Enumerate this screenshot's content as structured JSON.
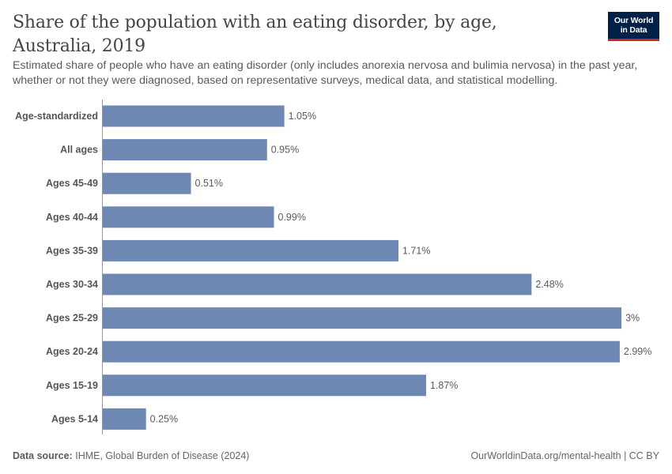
{
  "title": "Share of the population with an eating disorder, by age, Australia, 2019",
  "subtitle": "Estimated share of people who have an eating disorder (only includes anorexia nervosa and bulimia nervosa) in the past year, whether or not they were diagnosed, based on representative surveys, medical data, and statistical modelling.",
  "logo": {
    "line1": "Our World",
    "line2": "in Data",
    "bg_color": "#002147",
    "accent_color": "#ce261e"
  },
  "footer": {
    "source_label": "Data source:",
    "source_text": "IHME, Global Burden of Disease (2024)",
    "url_text": "OurWorldinData.org/mental-health | CC BY"
  },
  "chart_data": {
    "type": "bar",
    "orientation": "horizontal",
    "categories": [
      "Age-standardized",
      "All ages",
      "Ages 45-49",
      "Ages 40-44",
      "Ages 35-39",
      "Ages 30-34",
      "Ages 25-29",
      "Ages 20-24",
      "Ages 15-19",
      "Ages 5-14"
    ],
    "values": [
      1.05,
      0.95,
      0.51,
      0.99,
      1.71,
      2.48,
      3.0,
      2.99,
      1.87,
      0.25
    ],
    "value_labels": [
      "1.05%",
      "0.95%",
      "0.51%",
      "0.99%",
      "1.71%",
      "2.48%",
      "3%",
      "2.99%",
      "1.87%",
      "0.25%"
    ],
    "unit": "%",
    "xlim": [
      0,
      3
    ],
    "bar_color": "#6d88b2",
    "grid": false,
    "legend": "none"
  }
}
